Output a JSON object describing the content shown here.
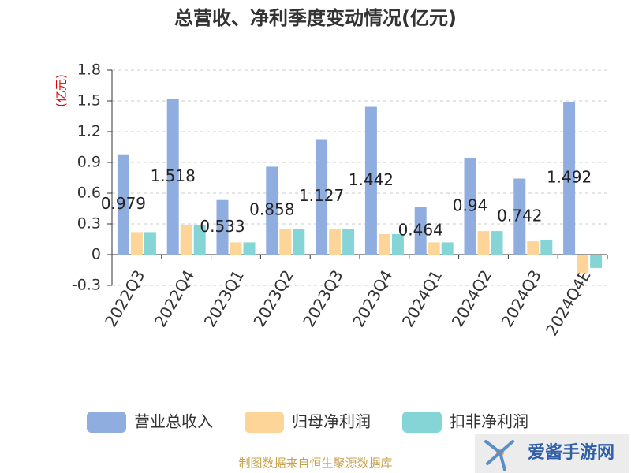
{
  "chart_data": {
    "type": "bar",
    "title": "总营收、净利季度变动情况(亿元)",
    "y_unit": "(亿元)",
    "categories": [
      "2022Q3",
      "2022Q4",
      "2023Q1",
      "2023Q2",
      "2023Q3",
      "2023Q4",
      "2024Q1",
      "2024Q2",
      "2024Q3",
      "2024Q4E"
    ],
    "series": [
      {
        "name": "营业总收入",
        "color": "#8fadde",
        "values": [
          0.979,
          1.518,
          0.533,
          0.858,
          1.127,
          1.442,
          0.464,
          0.94,
          0.742,
          1.492
        ]
      },
      {
        "name": "归母净利润",
        "color": "#fdd598",
        "values": [
          0.22,
          0.29,
          0.12,
          0.25,
          0.25,
          0.2,
          0.12,
          0.23,
          0.13,
          -0.18
        ]
      },
      {
        "name": "扣非净利润",
        "color": "#85d4d6",
        "values": [
          0.22,
          0.29,
          0.12,
          0.25,
          0.25,
          0.2,
          0.12,
          0.23,
          0.14,
          -0.13
        ]
      }
    ],
    "ylim": [
      -0.3,
      1.8
    ],
    "yticks": [
      -0.3,
      0,
      0.3,
      0.6,
      0.9,
      1.2,
      1.5,
      1.8
    ],
    "grid": true,
    "source": "制图数据来自恒生聚源数据库",
    "watermark": "爱酱手游网"
  }
}
